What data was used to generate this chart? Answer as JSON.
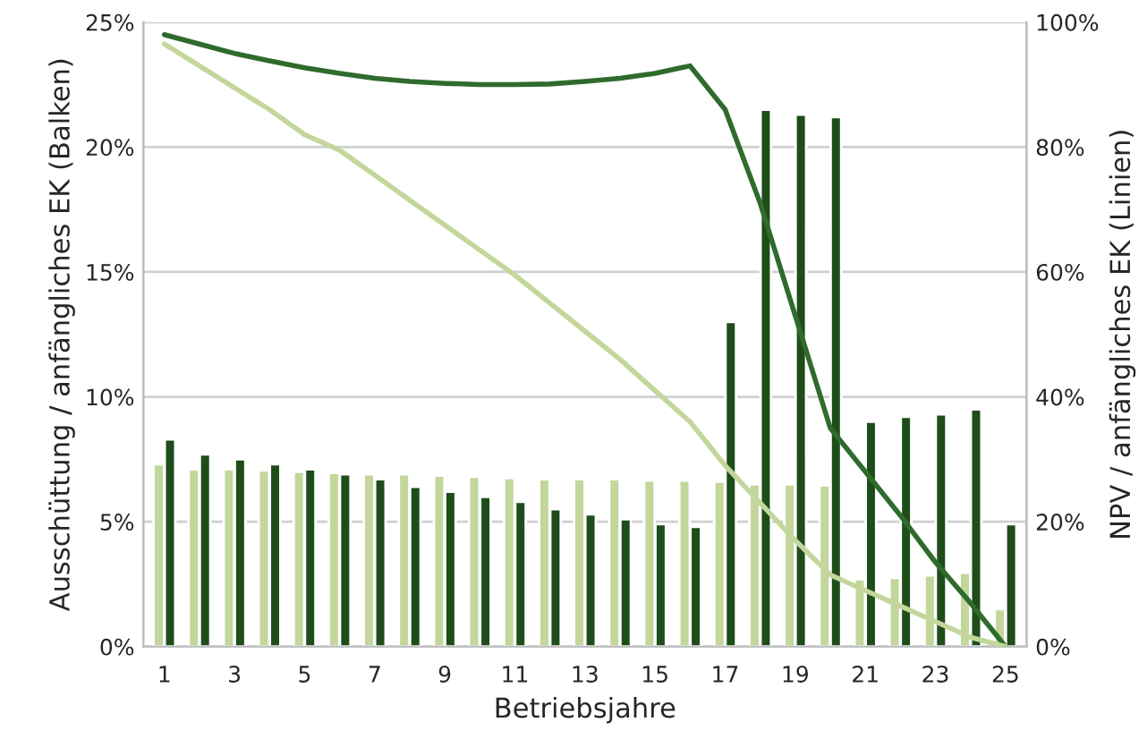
{
  "chart_data": {
    "type": "bar",
    "xlabel": "Betriebsjahre",
    "ylabel": "Ausschüttung / anfängliches EK (Balken)",
    "y2label": "NPV / anfängliches EK (Linien)",
    "categories": [
      "1",
      null,
      "3",
      null,
      "5",
      null,
      "7",
      null,
      "9",
      null,
      "11",
      null,
      "13",
      null,
      "15",
      null,
      "17",
      null,
      "19",
      null,
      "21",
      null,
      "23",
      null,
      "25"
    ],
    "series": [
      {
        "color": "#c3d69b",
        "values": [
          7.3,
          7.1,
          7.1,
          7.05,
          7.0,
          6.95,
          6.9,
          6.9,
          6.85,
          6.8,
          6.75,
          6.7,
          6.7,
          6.7,
          6.65,
          6.65,
          6.6,
          6.5,
          6.5,
          6.45,
          2.7,
          2.75,
          2.85,
          2.95,
          1.5
        ]
      },
      {
        "color": "#1e4d1a",
        "values": [
          8.3,
          7.7,
          7.5,
          7.3,
          7.1,
          6.9,
          6.7,
          6.4,
          6.2,
          6.0,
          5.8,
          5.5,
          5.3,
          5.1,
          4.9,
          4.8,
          13.0,
          21.5,
          21.3,
          21.2,
          9.0,
          9.2,
          9.3,
          9.5,
          4.9
        ]
      },
      {
        "type": "line",
        "axis": "y2",
        "color": "#2f6b2c",
        "values": [
          98,
          96.5,
          95,
          93.8,
          92.7,
          91.8,
          91,
          90.5,
          90.2,
          90,
          90,
          90.1,
          90.5,
          91,
          91.8,
          93,
          86,
          71,
          53,
          35,
          28,
          21,
          13.5,
          7,
          0
        ]
      },
      {
        "type": "line",
        "axis": "y2",
        "color": "#c3d69b",
        "values": [
          96.5,
          93,
          89.5,
          86,
          82,
          79.5,
          75.5,
          71.5,
          67.5,
          63.5,
          59.5,
          55,
          50.5,
          46,
          41,
          36,
          29,
          23,
          17,
          11.5,
          9,
          6.5,
          4,
          1.5,
          0
        ]
      }
    ],
    "ylim": [
      0,
      25
    ],
    "yticks": [
      {
        "value": 0,
        "label": "0%"
      },
      {
        "value": 5,
        "label": "5%"
      },
      {
        "value": 10,
        "label": "10%"
      },
      {
        "value": 15,
        "label": "15%"
      },
      {
        "value": 20,
        "label": "20%"
      },
      {
        "value": 25,
        "label": "25%"
      }
    ],
    "y2lim": [
      0,
      100
    ],
    "y2ticks": [
      {
        "value": 0,
        "label": "0%"
      },
      {
        "value": 20,
        "label": "20%"
      },
      {
        "value": 40,
        "label": "40%"
      },
      {
        "value": 60,
        "label": "60%"
      },
      {
        "value": 80,
        "label": "80%"
      },
      {
        "value": 100,
        "label": "100%"
      }
    ],
    "grid": "y",
    "legend": false
  }
}
